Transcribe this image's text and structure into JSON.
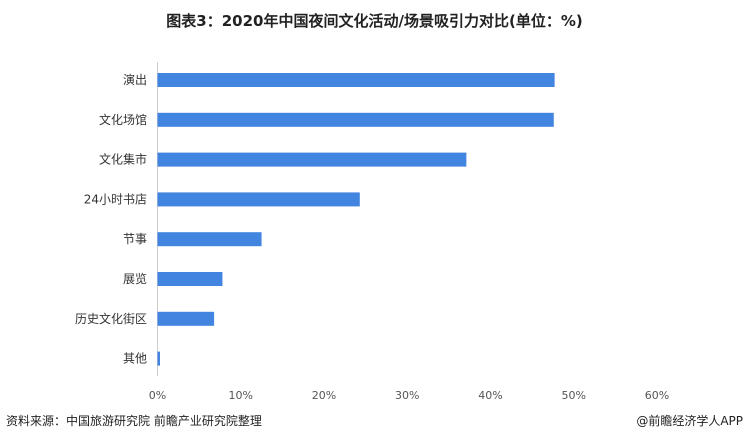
{
  "chart_data": {
    "type": "bar",
    "orientation": "horizontal",
    "title": "图表3：2020年中国夜间文化活动/场景吸引力对比(单位：%)",
    "categories": [
      "演出",
      "文化场馆",
      "文化集市",
      "24小时书店",
      "节事",
      "展览",
      "历史文化街区",
      "其他"
    ],
    "values": [
      47.7,
      47.6,
      37.1,
      24.3,
      12.5,
      7.8,
      6.8,
      0.3
    ],
    "xlim": [
      0,
      60
    ],
    "xticks": [
      "0%",
      "10%",
      "20%",
      "30%",
      "40%",
      "50%",
      "60%"
    ],
    "grid": false,
    "bar_color": "#4285e0"
  },
  "footer": {
    "source": "资料来源：中国旅游研究院 前瞻产业研究院整理",
    "brand": "@前瞻经济学人APP"
  }
}
